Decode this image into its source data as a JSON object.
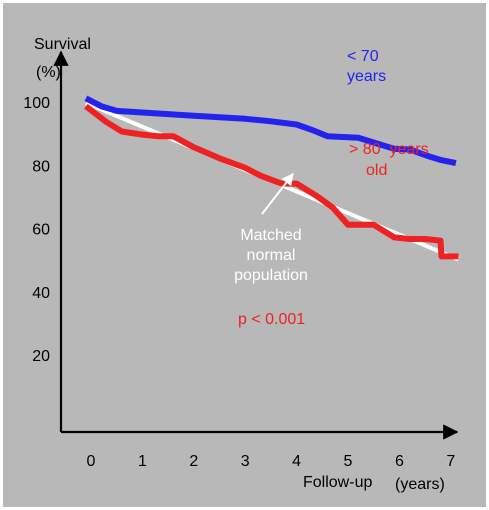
{
  "colors": {
    "background": "#b8b8b8",
    "frame": "#ffffff",
    "axis": "#000000",
    "under_70": "#2323ee",
    "over_80": "#ee2222",
    "normal": "#ffffff",
    "p_value": "#ee2222"
  },
  "chart_data": {
    "type": "line",
    "ylabel_line1": "Survival",
    "ylabel_line2": "(%)",
    "xlabel": "Follow-up",
    "xlabel_unit": "(years)",
    "xlim": [
      -0.55,
      7.15
    ],
    "ylim": [
      0,
      117
    ],
    "grid": false,
    "x_ticks": [
      {
        "value": 0,
        "label": "0"
      },
      {
        "value": 1,
        "label": "1"
      },
      {
        "value": 2,
        "label": "2"
      },
      {
        "value": 3,
        "label": "3"
      },
      {
        "value": 4,
        "label": "4"
      },
      {
        "value": 5,
        "label": "5"
      },
      {
        "value": 6,
        "label": "6"
      },
      {
        "value": 7,
        "label": "7"
      }
    ],
    "y_ticks": [
      {
        "value": 100,
        "label": "100"
      },
      {
        "value": 80,
        "label": "80"
      },
      {
        "value": 60,
        "label": "60"
      },
      {
        "value": 40,
        "label": "40"
      },
      {
        "value": 20,
        "label": "20"
      }
    ],
    "series": [
      {
        "name_line1": "< 70",
        "name_line2": "years",
        "color": "#2323ee",
        "points": [
          [
            -0.1,
            101.5
          ],
          [
            0.2,
            99
          ],
          [
            0.5,
            97.5
          ],
          [
            1,
            97
          ],
          [
            1.5,
            96.5
          ],
          [
            2,
            96
          ],
          [
            2.5,
            95.5
          ],
          [
            3,
            95
          ],
          [
            3.5,
            94.2
          ],
          [
            4,
            93.2
          ],
          [
            4.3,
            91.5
          ],
          [
            4.6,
            89.5
          ],
          [
            5.2,
            89
          ],
          [
            5.5,
            87.5
          ],
          [
            5.9,
            85.5
          ],
          [
            6.2,
            85.3
          ],
          [
            6.6,
            83
          ],
          [
            6.8,
            82
          ],
          [
            7.1,
            81
          ]
        ]
      },
      {
        "name_line1": "> 80  years",
        "name_line2": "old",
        "color": "#ee2222",
        "points": [
          [
            -0.1,
            99
          ],
          [
            0.3,
            94
          ],
          [
            0.6,
            91
          ],
          [
            1,
            90
          ],
          [
            1.3,
            89.5
          ],
          [
            1.6,
            89.5
          ],
          [
            2,
            86
          ],
          [
            2.5,
            82.5
          ],
          [
            3,
            79.5
          ],
          [
            3.3,
            77
          ],
          [
            3.7,
            74.5
          ],
          [
            4,
            74.5
          ],
          [
            4.4,
            70.5
          ],
          [
            4.7,
            67
          ],
          [
            5,
            61.5
          ],
          [
            5.5,
            61.5
          ],
          [
            5.9,
            57.5
          ],
          [
            6.2,
            57
          ],
          [
            6.5,
            57
          ],
          [
            6.8,
            56.5
          ],
          [
            6.82,
            51.5
          ],
          [
            7.15,
            51.5
          ]
        ]
      },
      {
        "name_line1": "Matched",
        "name_line2": "normal",
        "name_line3": "population",
        "color": "#ffffff",
        "points": [
          [
            -0.1,
            100
          ],
          [
            7.15,
            50.5
          ]
        ]
      }
    ],
    "annotations": {
      "p_value": "p < 0.001"
    }
  }
}
